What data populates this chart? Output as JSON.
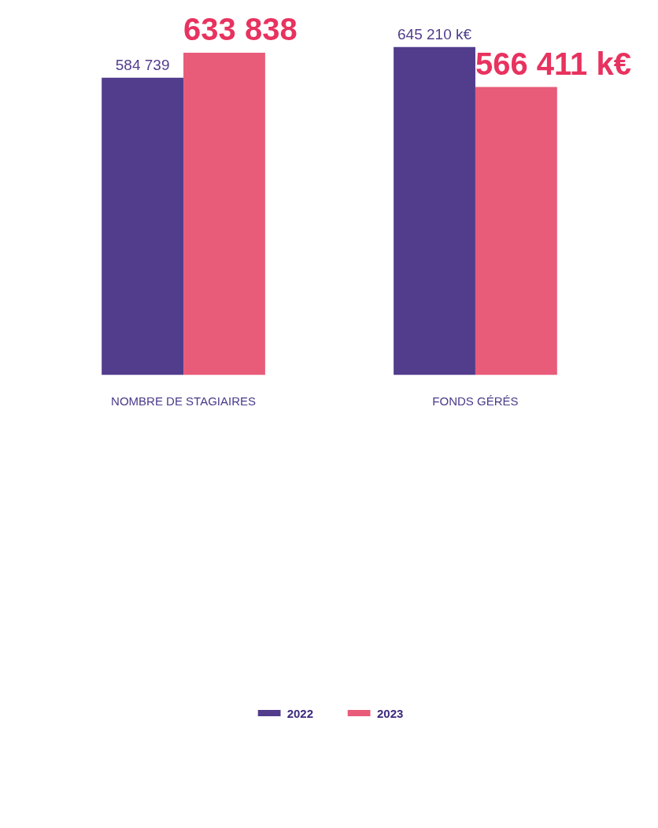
{
  "chart_data": {
    "type": "bar",
    "categories": [
      "NOMBRE DE STAGIAIRES",
      "FONDS GÉRÉS"
    ],
    "series": [
      {
        "name": "2022",
        "color": "#523c8c",
        "values": [
          584739,
          645210
        ],
        "value_labels": [
          "584 739",
          "645 210 k€"
        ]
      },
      {
        "name": "2023",
        "color": "#e85c7a",
        "values": [
          633838,
          566411
        ],
        "value_labels": [
          "633 838",
          "566 411 k€"
        ]
      }
    ],
    "legend": "bottom",
    "grid": false,
    "tick_labels": "x"
  }
}
